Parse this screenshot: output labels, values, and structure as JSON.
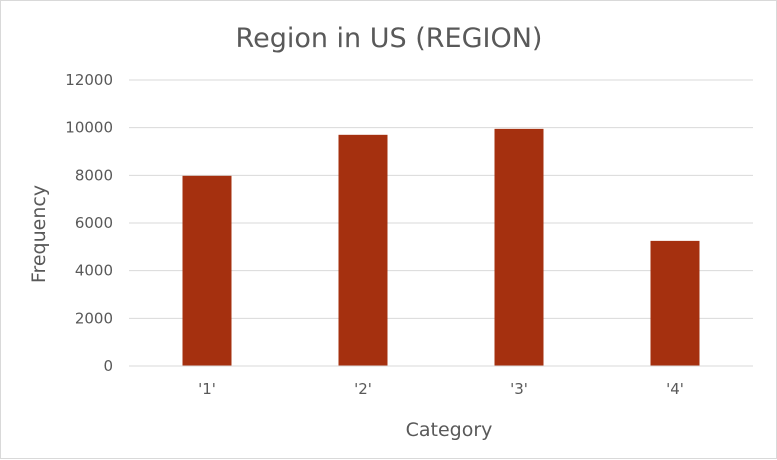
{
  "chart_data": {
    "type": "bar",
    "title": "Region in US (REGION)",
    "xlabel": "Category",
    "ylabel": "Frequency",
    "categories": [
      "'1'",
      "'2'",
      "'3'",
      "'4'"
    ],
    "values": [
      7980,
      9700,
      9950,
      5250
    ],
    "ylim": [
      0,
      12000
    ],
    "yticks": [
      0,
      2000,
      4000,
      6000,
      8000,
      10000,
      12000
    ],
    "grid": true,
    "legend": "none",
    "bar_color": "#a5300f"
  }
}
